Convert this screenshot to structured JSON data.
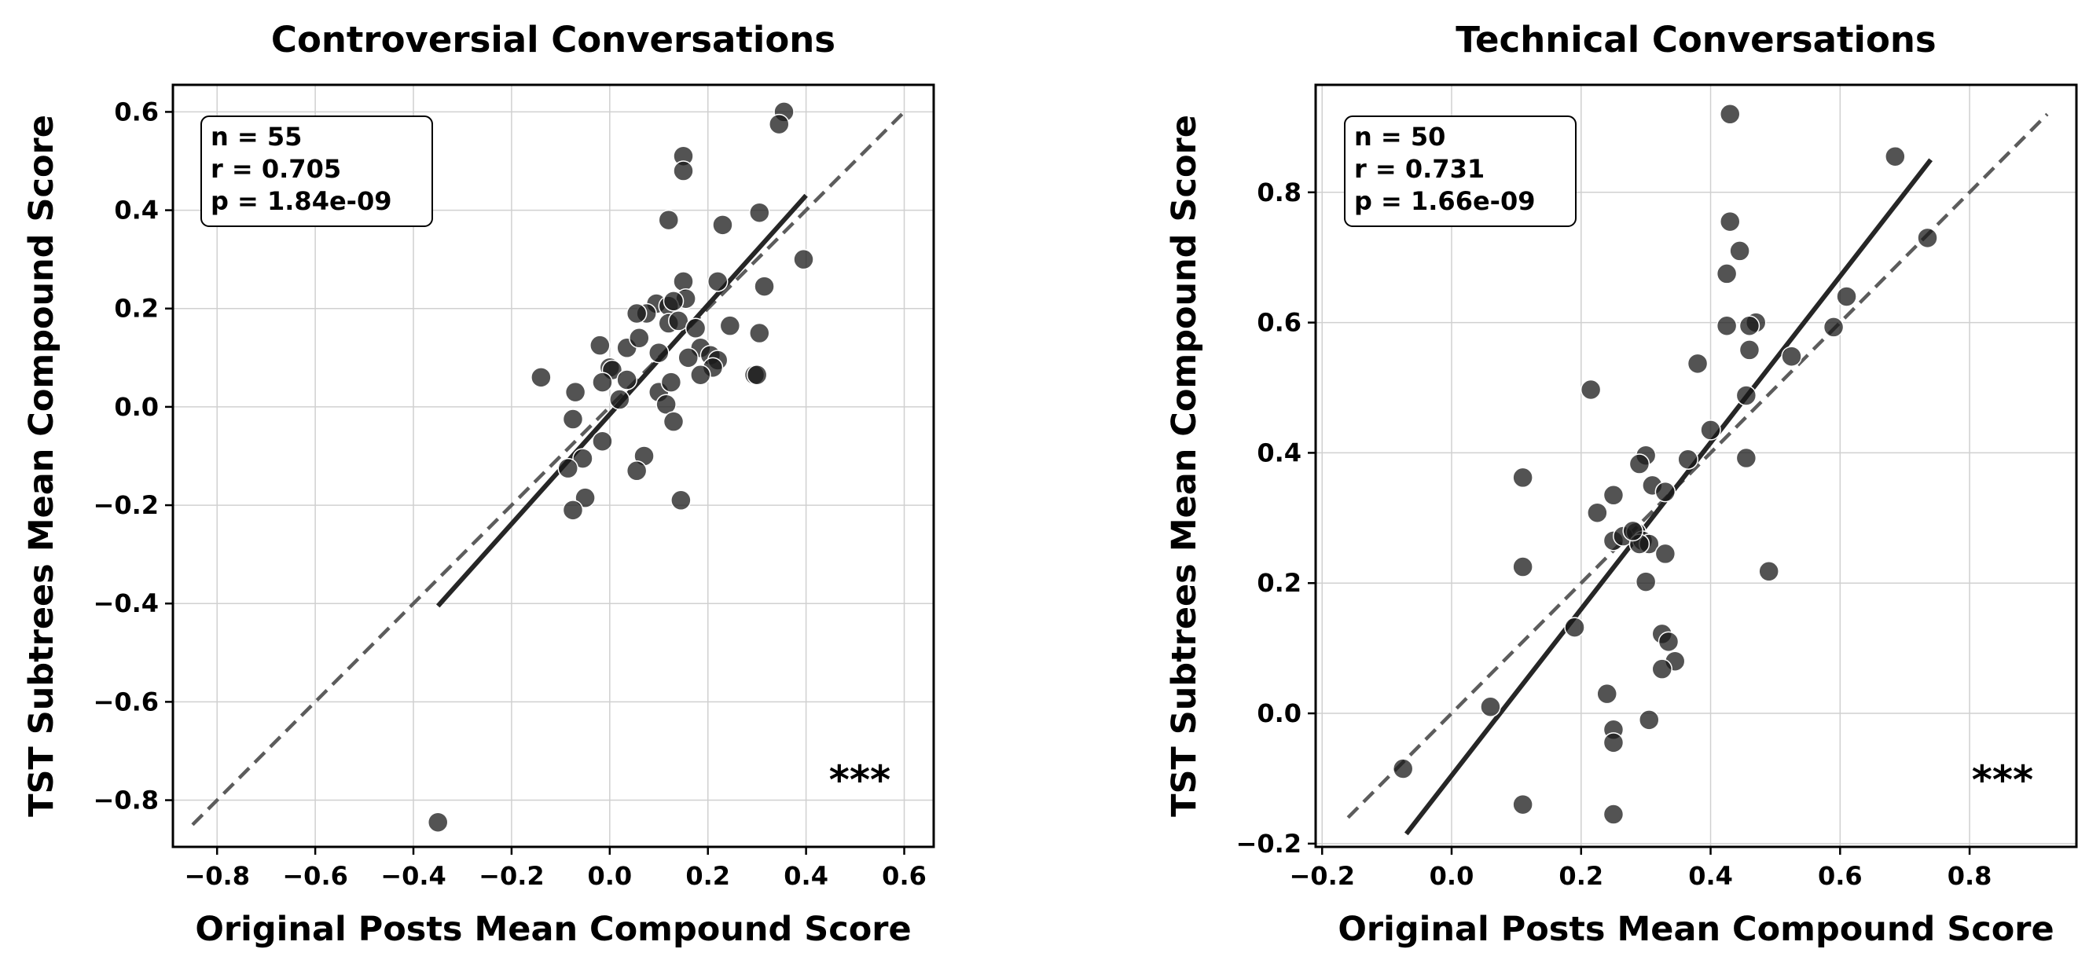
{
  "chart_data": [
    {
      "type": "scatter",
      "title": "Controversial Conversations",
      "xlabel": "Original Posts Mean Compound Score",
      "ylabel": "TST Subtrees Mean Compound Score",
      "xlim": [
        -0.89,
        0.66
      ],
      "ylim": [
        -0.895,
        0.655
      ],
      "xticks": [
        "−0.8",
        "−0.6",
        "−0.4",
        "−0.2",
        "0.0",
        "0.2",
        "0.4",
        "0.6"
      ],
      "yticks": [
        "−0.8",
        "−0.6",
        "−0.4",
        "−0.2",
        "0.0",
        "0.2",
        "0.4",
        "0.6"
      ],
      "grid": true,
      "stats": [
        "n = 55",
        "r = 0.705",
        "p = 1.84e-09"
      ],
      "significance": "***",
      "fit_line": {
        "x": [
          -0.35,
          0.4
        ],
        "y": [
          -0.405,
          0.43
        ]
      },
      "identity_line": {
        "x": [
          -0.85,
          0.6
        ],
        "y": [
          -0.85,
          0.6
        ]
      },
      "points": [
        [
          0.355,
          0.6
        ],
        [
          0.345,
          0.575
        ],
        [
          0.15,
          0.51
        ],
        [
          0.15,
          0.48
        ],
        [
          0.12,
          0.38
        ],
        [
          0.305,
          0.395
        ],
        [
          0.395,
          0.3
        ],
        [
          0.23,
          0.37
        ],
        [
          0.315,
          0.245
        ],
        [
          0.22,
          0.255
        ],
        [
          0.15,
          0.255
        ],
        [
          0.155,
          0.22
        ],
        [
          0.095,
          0.21
        ],
        [
          0.12,
          0.205
        ],
        [
          0.13,
          0.215
        ],
        [
          0.075,
          0.19
        ],
        [
          0.055,
          0.19
        ],
        [
          0.12,
          0.17
        ],
        [
          0.14,
          0.175
        ],
        [
          0.175,
          0.16
        ],
        [
          0.245,
          0.165
        ],
        [
          0.1,
          0.11
        ],
        [
          0.035,
          0.12
        ],
        [
          0.06,
          0.14
        ],
        [
          0.185,
          0.12
        ],
        [
          0.205,
          0.105
        ],
        [
          0.22,
          0.095
        ],
        [
          0.21,
          0.08
        ],
        [
          0.185,
          0.065
        ],
        [
          0.295,
          0.065
        ],
        [
          0.3,
          0.065
        ],
        [
          0.305,
          0.15
        ],
        [
          0.0,
          0.08
        ],
        [
          0.005,
          0.075
        ],
        [
          -0.015,
          0.05
        ],
        [
          -0.02,
          0.125
        ],
        [
          0.035,
          0.055
        ],
        [
          0.02,
          0.015
        ],
        [
          0.1,
          0.03
        ],
        [
          0.115,
          0.005
        ],
        [
          0.125,
          0.05
        ],
        [
          0.13,
          -0.03
        ],
        [
          -0.07,
          0.03
        ],
        [
          -0.14,
          0.06
        ],
        [
          -0.075,
          -0.025
        ],
        [
          -0.015,
          -0.07
        ],
        [
          0.07,
          -0.1
        ],
        [
          0.055,
          -0.13
        ],
        [
          -0.055,
          -0.105
        ],
        [
          -0.085,
          -0.125
        ],
        [
          -0.05,
          -0.185
        ],
        [
          -0.075,
          -0.21
        ],
        [
          0.145,
          -0.19
        ],
        [
          -0.35,
          -0.845
        ],
        [
          0.16,
          0.1
        ]
      ]
    },
    {
      "type": "scatter",
      "title": "Technical Conversations",
      "xlabel": "Original Posts Mean Compound Score",
      "ylabel": "TST Subtrees Mean Compound Score",
      "xlim": [
        -0.21,
        0.965
      ],
      "ylim": [
        -0.205,
        0.965
      ],
      "xticks": [
        "−0.2",
        "0.0",
        "0.2",
        "0.4",
        "0.6",
        "0.8"
      ],
      "yticks": [
        "−0.2",
        "0.0",
        "0.2",
        "0.4",
        "0.6",
        "0.8"
      ],
      "grid": true,
      "stats": [
        "n = 50",
        "r = 0.731",
        "p = 1.66e-09"
      ],
      "significance": "***",
      "fit_line": {
        "x": [
          -0.07,
          0.74
        ],
        "y": [
          -0.185,
          0.85
        ]
      },
      "identity_line": {
        "x": [
          -0.16,
          0.92
        ],
        "y": [
          -0.16,
          0.92
        ]
      },
      "points": [
        [
          0.43,
          0.92
        ],
        [
          0.685,
          0.855
        ],
        [
          0.735,
          0.73
        ],
        [
          0.43,
          0.755
        ],
        [
          0.445,
          0.71
        ],
        [
          0.425,
          0.675
        ],
        [
          0.61,
          0.64
        ],
        [
          0.47,
          0.6
        ],
        [
          0.46,
          0.595
        ],
        [
          0.425,
          0.595
        ],
        [
          0.59,
          0.593
        ],
        [
          0.46,
          0.558
        ],
        [
          0.525,
          0.548
        ],
        [
          0.38,
          0.537
        ],
        [
          0.215,
          0.497
        ],
        [
          0.455,
          0.488
        ],
        [
          0.4,
          0.435
        ],
        [
          0.455,
          0.392
        ],
        [
          0.365,
          0.39
        ],
        [
          0.3,
          0.396
        ],
        [
          0.29,
          0.383
        ],
        [
          0.31,
          0.35
        ],
        [
          0.33,
          0.34
        ],
        [
          0.11,
          0.362
        ],
        [
          0.225,
          0.308
        ],
        [
          0.25,
          0.335
        ],
        [
          0.25,
          0.265
        ],
        [
          0.265,
          0.272
        ],
        [
          0.285,
          0.278
        ],
        [
          0.295,
          0.265
        ],
        [
          0.305,
          0.26
        ],
        [
          0.29,
          0.26
        ],
        [
          0.33,
          0.245
        ],
        [
          0.3,
          0.202
        ],
        [
          0.49,
          0.218
        ],
        [
          0.11,
          0.225
        ],
        [
          0.19,
          0.132
        ],
        [
          0.325,
          0.122
        ],
        [
          0.335,
          0.11
        ],
        [
          0.345,
          0.08
        ],
        [
          0.325,
          0.068
        ],
        [
          0.24,
          0.03
        ],
        [
          0.06,
          0.01
        ],
        [
          0.305,
          -0.01
        ],
        [
          0.25,
          -0.025
        ],
        [
          0.25,
          -0.045
        ],
        [
          -0.075,
          -0.085
        ],
        [
          0.11,
          -0.14
        ],
        [
          0.25,
          -0.155
        ],
        [
          0.28,
          0.28
        ]
      ]
    }
  ]
}
